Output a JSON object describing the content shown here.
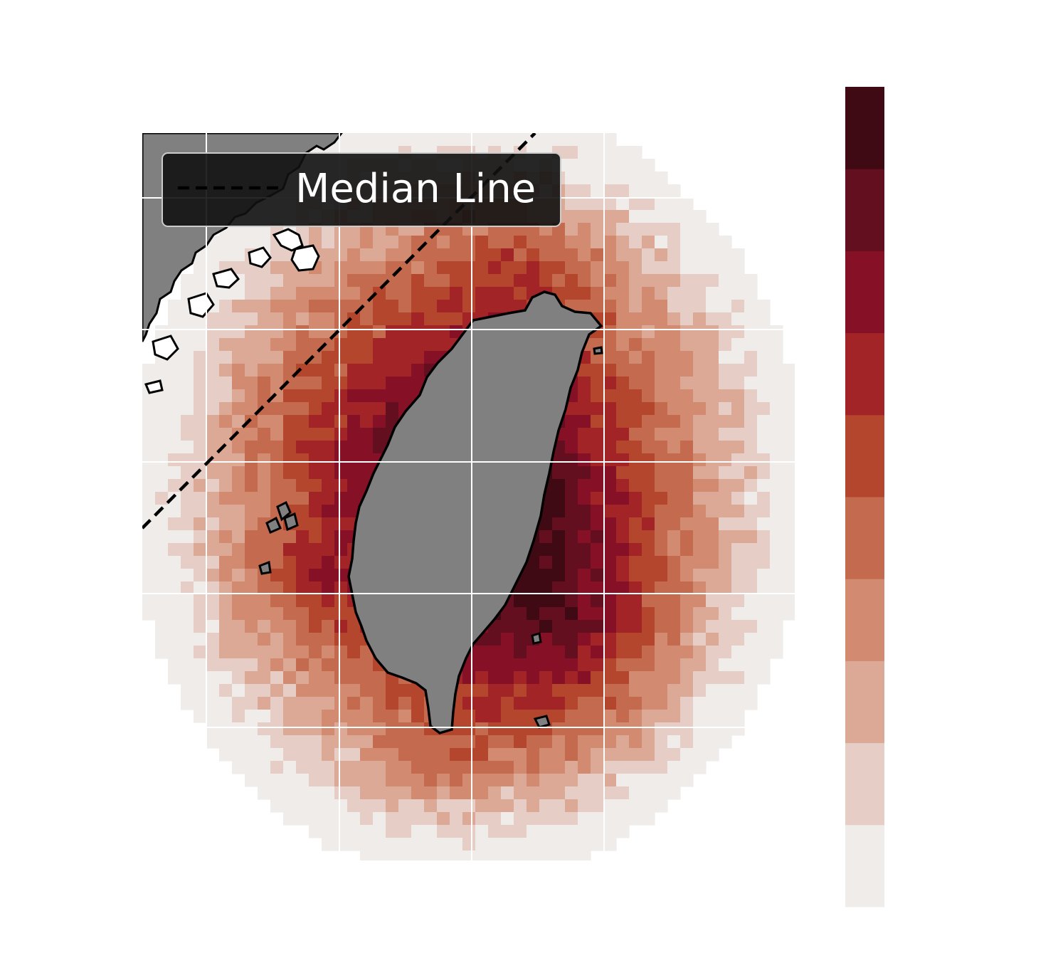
{
  "legend": {
    "label": "Median Line"
  },
  "colorbar": {
    "levels": 10,
    "colors": [
      "#f0ecea",
      "#e6cdc5",
      "#dba996",
      "#d28a70",
      "#c46a4e",
      "#b5462e",
      "#a32426",
      "#861026",
      "#630f20",
      "#3f0a13"
    ]
  },
  "map": {
    "land_color": "#808080",
    "grid_color": "#ffffff",
    "coastline_color": "#000000"
  }
}
